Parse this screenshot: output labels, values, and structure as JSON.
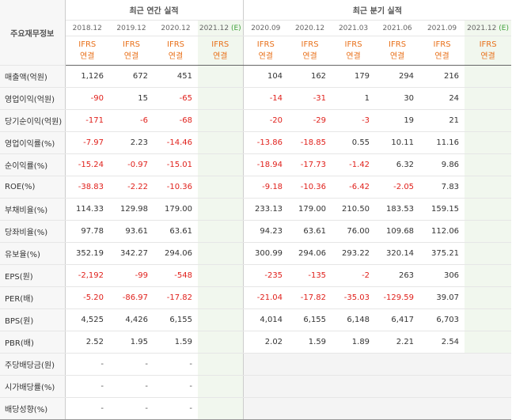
{
  "header": {
    "corner_label": "주요재무정보",
    "annual_label": "최근 연간 실적",
    "quarter_label": "최근 분기 실적",
    "annual_dates": [
      "2018.12",
      "2019.12",
      "2020.12",
      "2021.12"
    ],
    "annual_est_mark": "(E)",
    "quarter_dates": [
      "2020.09",
      "2020.12",
      "2021.03",
      "2021.06",
      "2021.09",
      "2021.12"
    ],
    "quarter_est_mark": "(E)",
    "ifrs": "IFRS",
    "consol": "연결"
  },
  "rows": [
    {
      "label": "매출액(억원)",
      "annual": [
        "1,126",
        "672",
        "451",
        ""
      ],
      "quarter": [
        "104",
        "162",
        "179",
        "294",
        "216",
        ""
      ]
    },
    {
      "label": "영업이익(억원)",
      "annual": [
        "-90",
        "15",
        "-65",
        ""
      ],
      "quarter": [
        "-14",
        "-31",
        "1",
        "30",
        "24",
        ""
      ]
    },
    {
      "label": "당기순이익(억원)",
      "annual": [
        "-171",
        "-6",
        "-68",
        ""
      ],
      "quarter": [
        "-20",
        "-29",
        "-3",
        "19",
        "21",
        ""
      ]
    },
    {
      "label": "영업이익률(%)",
      "annual": [
        "-7.97",
        "2.23",
        "-14.46",
        ""
      ],
      "quarter": [
        "-13.86",
        "-18.85",
        "0.55",
        "10.11",
        "11.16",
        ""
      ]
    },
    {
      "label": "순이익률(%)",
      "annual": [
        "-15.24",
        "-0.97",
        "-15.01",
        ""
      ],
      "quarter": [
        "-18.94",
        "-17.73",
        "-1.42",
        "6.32",
        "9.86",
        ""
      ]
    },
    {
      "label": "ROE(%)",
      "annual": [
        "-38.83",
        "-2.22",
        "-10.36",
        ""
      ],
      "quarter": [
        "-9.18",
        "-10.36",
        "-6.42",
        "-2.05",
        "7.83",
        ""
      ]
    },
    {
      "label": "부채비율(%)",
      "annual": [
        "114.33",
        "129.98",
        "179.00",
        ""
      ],
      "quarter": [
        "233.13",
        "179.00",
        "210.50",
        "183.53",
        "159.15",
        ""
      ]
    },
    {
      "label": "당좌비율(%)",
      "annual": [
        "97.78",
        "93.61",
        "63.61",
        ""
      ],
      "quarter": [
        "94.23",
        "63.61",
        "76.00",
        "109.68",
        "112.06",
        ""
      ]
    },
    {
      "label": "유보율(%)",
      "annual": [
        "352.19",
        "342.27",
        "294.06",
        ""
      ],
      "quarter": [
        "300.99",
        "294.06",
        "293.22",
        "320.14",
        "375.21",
        ""
      ]
    },
    {
      "label": "EPS(원)",
      "annual": [
        "-2,192",
        "-99",
        "-548",
        ""
      ],
      "quarter": [
        "-235",
        "-135",
        "-2",
        "263",
        "306",
        ""
      ]
    },
    {
      "label": "PER(배)",
      "annual": [
        "-5.20",
        "-86.97",
        "-17.82",
        ""
      ],
      "quarter": [
        "-21.04",
        "-17.82",
        "-35.03",
        "-129.59",
        "39.07",
        ""
      ]
    },
    {
      "label": "BPS(원)",
      "annual": [
        "4,525",
        "4,426",
        "6,155",
        ""
      ],
      "quarter": [
        "4,014",
        "6,155",
        "6,148",
        "6,417",
        "6,703",
        ""
      ]
    },
    {
      "label": "PBR(배)",
      "annual": [
        "2.52",
        "1.95",
        "1.59",
        ""
      ],
      "quarter": [
        "2.02",
        "1.59",
        "1.89",
        "2.21",
        "2.54",
        ""
      ]
    },
    {
      "label": "주당배당금(원)",
      "annual": [
        "-",
        "-",
        "-",
        ""
      ],
      "quarter": []
    },
    {
      "label": "시가배당률(%)",
      "annual": [
        "-",
        "-",
        "-",
        ""
      ],
      "quarter": []
    },
    {
      "label": "배당성향(%)",
      "annual": [
        "-",
        "-",
        "-",
        ""
      ],
      "quarter": []
    }
  ],
  "colors": {
    "negative": "#e0201b",
    "ifrs": "#e8701a",
    "estimate_bg": "#f1f7ee",
    "estimate_mark": "#3fa13a"
  }
}
